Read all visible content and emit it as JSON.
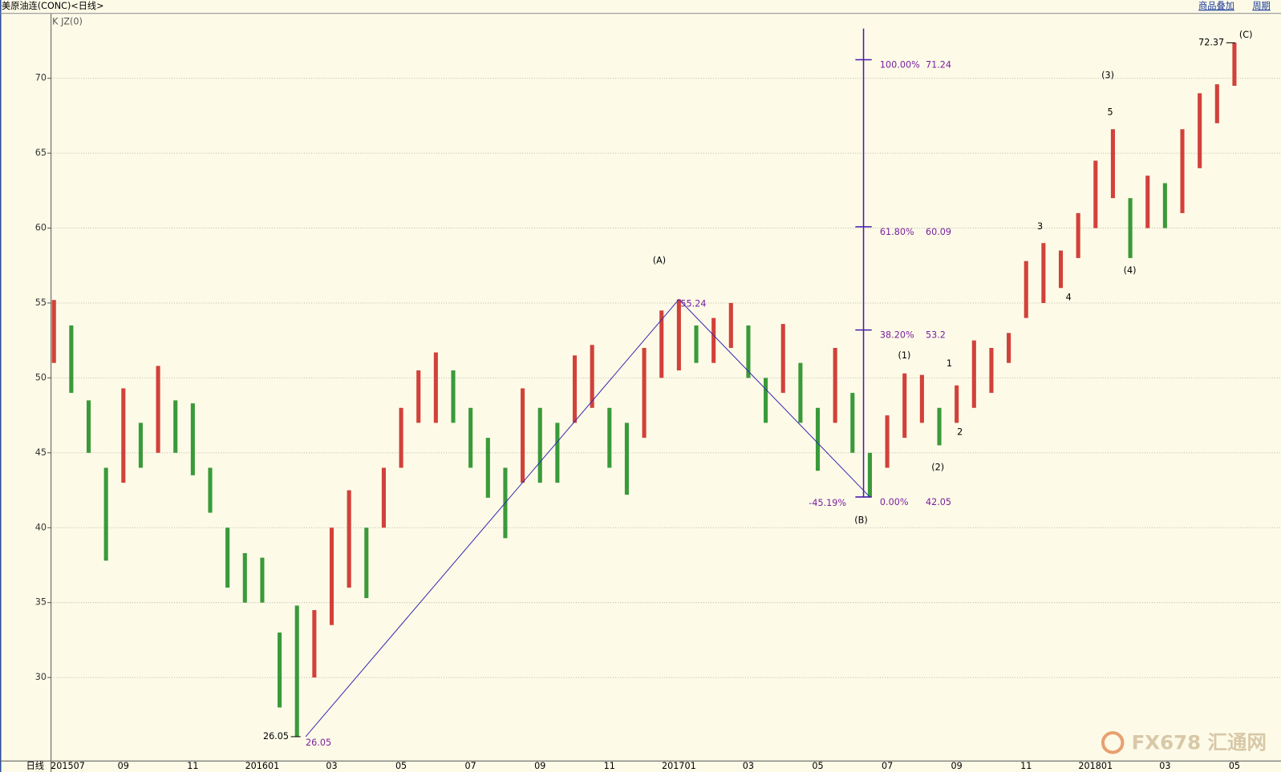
{
  "chart_data": {
    "type": "ohlc",
    "title": "美原油连(CONC)<日线>",
    "indicator": "K JZ(0)",
    "period_label": "日线",
    "buttons": [
      "商品叠加",
      "周期"
    ],
    "watermark": "FX678 汇通网",
    "up_color": "#d2413a",
    "down_color": "#3a9a3a",
    "categories": [
      "201507",
      null,
      null,
      null,
      "09",
      null,
      null,
      null,
      "11",
      null,
      null,
      null,
      "201601",
      null,
      null,
      null,
      "03",
      null,
      null,
      null,
      "05",
      null,
      null,
      null,
      "07",
      null,
      null,
      null,
      "09",
      null,
      null,
      null,
      "11",
      null,
      null,
      null,
      "201701",
      null,
      null,
      null,
      "03",
      null,
      null,
      null,
      "05",
      null,
      null,
      null,
      "07",
      null,
      null,
      null,
      "09",
      null,
      null,
      null,
      "11",
      null,
      null,
      null,
      "201801",
      null,
      null,
      null,
      "03",
      null,
      null,
      null,
      "05"
    ],
    "high": [
      55.2,
      53.5,
      48.5,
      44,
      49.3,
      47,
      50.8,
      48.5,
      48.3,
      44,
      40,
      38.3,
      38,
      33,
      34.8,
      34.5,
      40,
      42.5,
      40,
      44,
      48,
      50.5,
      51.7,
      50.5,
      48,
      46,
      44,
      49.3,
      48,
      47,
      51.5,
      52.2,
      48,
      47,
      52,
      54.5,
      55.24,
      53.5,
      54,
      55,
      53.5,
      50,
      53.6,
      51,
      48,
      52,
      49,
      45,
      47.5,
      50.3,
      50.2,
      48,
      49.5,
      52.5,
      52,
      53,
      57.8,
      59,
      58.5,
      61,
      64.5,
      66.6,
      62,
      63.5,
      63,
      66.6,
      69,
      69.6,
      72.37
    ],
    "low": [
      51,
      49,
      45,
      37.8,
      43,
      44,
      45,
      45,
      43.5,
      41,
      36,
      35,
      35,
      28,
      26.05,
      30,
      33.5,
      36,
      35.3,
      40,
      44,
      47,
      47,
      47,
      44,
      42,
      39.3,
      43,
      43,
      43,
      47,
      48,
      44,
      42.2,
      46,
      50,
      50.5,
      51,
      51,
      52,
      50,
      47,
      49,
      47,
      43.8,
      47,
      45,
      42.05,
      44,
      46,
      47,
      45.5,
      47,
      48,
      49,
      51,
      54,
      55,
      56,
      58,
      60,
      62,
      58,
      60,
      60,
      61,
      64,
      67,
      69.5
    ],
    "ylim": [
      24.4,
      74.3
    ],
    "yticks": [
      30,
      35,
      40,
      45,
      50,
      55,
      60,
      65,
      70
    ],
    "grid": true,
    "zigzag": [
      26.05,
      55.24,
      42.05
    ],
    "zigzag_labels": [
      "26.05",
      "55.24"
    ],
    "retracement": "-45.19%",
    "extremes": [
      {
        "value": 26.05,
        "label": "26.05"
      },
      {
        "value": 72.37,
        "label": "72.37"
      }
    ],
    "fib": [
      {
        "pct": "100.00%",
        "value": 71.24
      },
      {
        "pct": "61.80%",
        "value": 60.09
      },
      {
        "pct": "38.20%",
        "value": 53.2
      },
      {
        "pct": "0.00%",
        "value": 42.05
      }
    ],
    "waves": [
      "(A)",
      "(B)",
      "(C)",
      "(1)",
      "(2)",
      "(3)",
      "(4)",
      "1",
      "2",
      "3",
      "4",
      "5"
    ]
  }
}
